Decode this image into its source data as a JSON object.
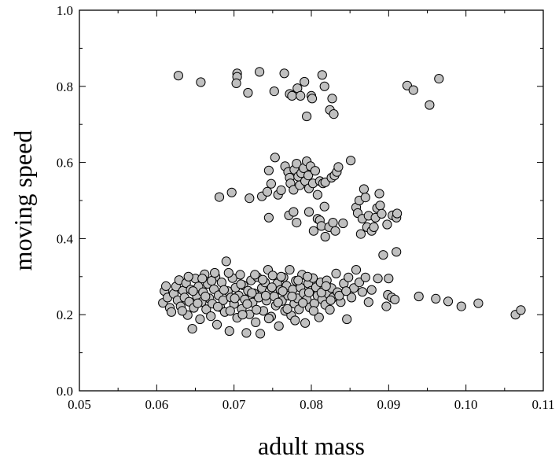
{
  "chart_data": {
    "type": "scatter",
    "title": "",
    "xlabel": "adult mass",
    "ylabel": "moving speed",
    "xlim": [
      0.05,
      0.11
    ],
    "ylim": [
      0.0,
      1.0
    ],
    "x_ticks": [
      "0.05",
      "0.06",
      "0.07",
      "0.08",
      "0.09",
      "0.10",
      "0.11"
    ],
    "y_ticks": [
      "0.0",
      "0.2",
      "0.4",
      "0.6",
      "0.8",
      "1.0"
    ],
    "grid": false,
    "legend": "none",
    "marker_fill": "#c0c0c0",
    "marker_edge": "#000000",
    "series": [
      {
        "points": [
          [
            0.0628,
            0.828
          ],
          [
            0.0657,
            0.811
          ],
          [
            0.0704,
            0.834
          ],
          [
            0.0704,
            0.825
          ],
          [
            0.0703,
            0.808
          ],
          [
            0.0718,
            0.783
          ],
          [
            0.0733,
            0.838
          ],
          [
            0.0752,
            0.787
          ],
          [
            0.0765,
            0.834
          ],
          [
            0.0772,
            0.78
          ],
          [
            0.0775,
            0.775
          ],
          [
            0.0782,
            0.795
          ],
          [
            0.0786,
            0.775
          ],
          [
            0.0791,
            0.812
          ],
          [
            0.08,
            0.775
          ],
          [
            0.0801,
            0.768
          ],
          [
            0.0814,
            0.83
          ],
          [
            0.0817,
            0.8
          ],
          [
            0.0827,
            0.768
          ],
          [
            0.0824,
            0.738
          ],
          [
            0.0829,
            0.727
          ],
          [
            0.0794,
            0.721
          ],
          [
            0.0924,
            0.802
          ],
          [
            0.0932,
            0.79
          ],
          [
            0.0965,
            0.82
          ],
          [
            0.0953,
            0.751
          ],
          [
            0.0681,
            0.509
          ],
          [
            0.0697,
            0.521
          ],
          [
            0.072,
            0.506
          ],
          [
            0.0736,
            0.511
          ],
          [
            0.0743,
            0.523
          ],
          [
            0.0745,
            0.579
          ],
          [
            0.0748,
            0.544
          ],
          [
            0.0753,
            0.613
          ],
          [
            0.0757,
            0.515
          ],
          [
            0.0761,
            0.527
          ],
          [
            0.0766,
            0.59
          ],
          [
            0.077,
            0.575
          ],
          [
            0.0772,
            0.56
          ],
          [
            0.0773,
            0.545
          ],
          [
            0.0777,
            0.528
          ],
          [
            0.0778,
            0.581
          ],
          [
            0.0781,
            0.597
          ],
          [
            0.0783,
            0.563
          ],
          [
            0.0785,
            0.54
          ],
          [
            0.0787,
            0.572
          ],
          [
            0.079,
            0.585
          ],
          [
            0.0792,
            0.551
          ],
          [
            0.0794,
            0.603
          ],
          [
            0.0796,
            0.566
          ],
          [
            0.0797,
            0.532
          ],
          [
            0.0799,
            0.59
          ],
          [
            0.0802,
            0.545
          ],
          [
            0.0805,
            0.578
          ],
          [
            0.0808,
            0.515
          ],
          [
            0.0811,
            0.551
          ],
          [
            0.0815,
            0.545
          ],
          [
            0.0818,
            0.548
          ],
          [
            0.0826,
            0.56
          ],
          [
            0.083,
            0.566
          ],
          [
            0.0833,
            0.575
          ],
          [
            0.0835,
            0.588
          ],
          [
            0.0851,
            0.605
          ],
          [
            0.0745,
            0.455
          ],
          [
            0.0771,
            0.461
          ],
          [
            0.0777,
            0.47
          ],
          [
            0.0781,
            0.442
          ],
          [
            0.0797,
            0.47
          ],
          [
            0.0803,
            0.42
          ],
          [
            0.0808,
            0.452
          ],
          [
            0.0811,
            0.448
          ],
          [
            0.0813,
            0.433
          ],
          [
            0.0817,
            0.484
          ],
          [
            0.0818,
            0.405
          ],
          [
            0.0823,
            0.43
          ],
          [
            0.0828,
            0.442
          ],
          [
            0.0831,
            0.42
          ],
          [
            0.0841,
            0.44
          ],
          [
            0.0858,
            0.482
          ],
          [
            0.086,
            0.467
          ],
          [
            0.0862,
            0.5
          ],
          [
            0.0864,
            0.412
          ],
          [
            0.0866,
            0.452
          ],
          [
            0.0868,
            0.53
          ],
          [
            0.087,
            0.508
          ],
          [
            0.0872,
            0.43
          ],
          [
            0.0874,
            0.46
          ],
          [
            0.0878,
            0.42
          ],
          [
            0.0881,
            0.43
          ],
          [
            0.0883,
            0.455
          ],
          [
            0.0885,
            0.48
          ],
          [
            0.0888,
            0.518
          ],
          [
            0.0889,
            0.487
          ],
          [
            0.0891,
            0.465
          ],
          [
            0.0898,
            0.437
          ],
          [
            0.0905,
            0.461
          ],
          [
            0.091,
            0.455
          ],
          [
            0.0911,
            0.466
          ],
          [
            0.0893,
            0.357
          ],
          [
            0.091,
            0.365
          ],
          [
            0.0608,
            0.231
          ],
          [
            0.061,
            0.262
          ],
          [
            0.0614,
            0.245
          ],
          [
            0.0617,
            0.218
          ],
          [
            0.0619,
            0.207
          ],
          [
            0.0622,
            0.255
          ],
          [
            0.0625,
            0.274
          ],
          [
            0.0627,
            0.238
          ],
          [
            0.0629,
            0.291
          ],
          [
            0.0631,
            0.222
          ],
          [
            0.0634,
            0.263
          ],
          [
            0.0636,
            0.245
          ],
          [
            0.0638,
            0.283
          ],
          [
            0.064,
            0.199
          ],
          [
            0.0642,
            0.234
          ],
          [
            0.0644,
            0.266
          ],
          [
            0.0646,
            0.163
          ],
          [
            0.0648,
            0.218
          ],
          [
            0.065,
            0.295
          ],
          [
            0.0652,
            0.248
          ],
          [
            0.0654,
            0.274
          ],
          [
            0.0656,
            0.188
          ],
          [
            0.0658,
            0.233
          ],
          [
            0.066,
            0.259
          ],
          [
            0.0662,
            0.306
          ],
          [
            0.0664,
            0.214
          ],
          [
            0.0666,
            0.281
          ],
          [
            0.0668,
            0.243
          ],
          [
            0.067,
            0.196
          ],
          [
            0.0672,
            0.229
          ],
          [
            0.0674,
            0.267
          ],
          [
            0.0676,
            0.3
          ],
          [
            0.0678,
            0.174
          ],
          [
            0.068,
            0.251
          ],
          [
            0.0682,
            0.22
          ],
          [
            0.0684,
            0.285
          ],
          [
            0.0686,
            0.238
          ],
          [
            0.0688,
            0.207
          ],
          [
            0.069,
            0.34
          ],
          [
            0.0692,
            0.262
          ],
          [
            0.0694,
            0.157
          ],
          [
            0.0696,
            0.245
          ],
          [
            0.0698,
            0.296
          ],
          [
            0.07,
            0.228
          ],
          [
            0.0702,
            0.271
          ],
          [
            0.0704,
            0.192
          ],
          [
            0.0706,
            0.25
          ],
          [
            0.0708,
            0.305
          ],
          [
            0.071,
            0.215
          ],
          [
            0.0712,
            0.277
          ],
          [
            0.0714,
            0.24
          ],
          [
            0.0716,
            0.152
          ],
          [
            0.0718,
            0.263
          ],
          [
            0.072,
            0.201
          ],
          [
            0.0722,
            0.29
          ],
          [
            0.0724,
            0.232
          ],
          [
            0.0726,
            0.256
          ],
          [
            0.0728,
            0.18
          ],
          [
            0.073,
            0.299
          ],
          [
            0.0732,
            0.245
          ],
          [
            0.0734,
            0.15
          ],
          [
            0.0736,
            0.27
          ],
          [
            0.0738,
            0.21
          ],
          [
            0.074,
            0.285
          ],
          [
            0.0742,
            0.237
          ],
          [
            0.0744,
            0.318
          ],
          [
            0.0746,
            0.262
          ],
          [
            0.0748,
            0.195
          ],
          [
            0.075,
            0.303
          ],
          [
            0.0752,
            0.248
          ],
          [
            0.0754,
            0.224
          ],
          [
            0.0756,
            0.282
          ],
          [
            0.0758,
            0.17
          ],
          [
            0.076,
            0.265
          ],
          [
            0.0762,
            0.236
          ],
          [
            0.0764,
            0.298
          ],
          [
            0.0766,
            0.21
          ],
          [
            0.0768,
            0.276
          ],
          [
            0.077,
            0.25
          ],
          [
            0.0772,
            0.318
          ],
          [
            0.0774,
            0.198
          ],
          [
            0.0776,
            0.266
          ],
          [
            0.0778,
            0.229
          ],
          [
            0.078,
            0.289
          ],
          [
            0.0782,
            0.243
          ],
          [
            0.0784,
            0.214
          ],
          [
            0.0786,
            0.271
          ],
          [
            0.0788,
            0.305
          ],
          [
            0.079,
            0.256
          ],
          [
            0.0792,
            0.178
          ],
          [
            0.0794,
            0.24
          ],
          [
            0.0796,
            0.282
          ],
          [
            0.0798,
            0.219
          ],
          [
            0.08,
            0.263
          ],
          [
            0.0802,
            0.296
          ],
          [
            0.0804,
            0.23
          ],
          [
            0.0806,
            0.272
          ],
          [
            0.0808,
            0.25
          ],
          [
            0.081,
            0.193
          ],
          [
            0.0812,
            0.285
          ],
          [
            0.0814,
            0.24
          ],
          [
            0.0816,
            0.265
          ],
          [
            0.0818,
            0.226
          ],
          [
            0.082,
            0.29
          ],
          [
            0.0822,
            0.255
          ],
          [
            0.0824,
            0.213
          ],
          [
            0.0826,
            0.27
          ],
          [
            0.0828,
            0.245
          ],
          [
            0.0832,
            0.308
          ],
          [
            0.0834,
            0.259
          ],
          [
            0.0838,
            0.233
          ],
          [
            0.0842,
            0.282
          ],
          [
            0.0846,
            0.188
          ],
          [
            0.0848,
            0.298
          ],
          [
            0.0852,
            0.245
          ],
          [
            0.0855,
            0.27
          ],
          [
            0.0858,
            0.318
          ],
          [
            0.0862,
            0.285
          ],
          [
            0.0866,
            0.26
          ],
          [
            0.087,
            0.298
          ],
          [
            0.0874,
            0.233
          ],
          [
            0.0878,
            0.265
          ],
          [
            0.0886,
            0.295
          ],
          [
            0.09,
            0.295
          ],
          [
            0.0897,
            0.222
          ],
          [
            0.0899,
            0.252
          ],
          [
            0.0904,
            0.245
          ],
          [
            0.0908,
            0.24
          ],
          [
            0.0939,
            0.248
          ],
          [
            0.0961,
            0.242
          ],
          [
            0.0977,
            0.235
          ],
          [
            0.0994,
            0.222
          ],
          [
            0.1016,
            0.23
          ],
          [
            0.1064,
            0.2
          ],
          [
            0.1071,
            0.212
          ],
          [
            0.0612,
            0.275
          ],
          [
            0.0633,
            0.21
          ],
          [
            0.0647,
            0.262
          ],
          [
            0.0653,
            0.23
          ],
          [
            0.0663,
            0.248
          ],
          [
            0.0671,
            0.289
          ],
          [
            0.0679,
            0.221
          ],
          [
            0.0687,
            0.265
          ],
          [
            0.0695,
            0.21
          ],
          [
            0.0701,
            0.243
          ],
          [
            0.0709,
            0.28
          ],
          [
            0.0717,
            0.228
          ],
          [
            0.0723,
            0.257
          ],
          [
            0.0729,
            0.213
          ],
          [
            0.0737,
            0.292
          ],
          [
            0.0741,
            0.25
          ],
          [
            0.0749,
            0.272
          ],
          [
            0.0757,
            0.232
          ],
          [
            0.0763,
            0.262
          ],
          [
            0.0769,
            0.215
          ],
          [
            0.0775,
            0.248
          ],
          [
            0.0783,
            0.29
          ],
          [
            0.0789,
            0.231
          ],
          [
            0.0797,
            0.258
          ],
          [
            0.0803,
            0.21
          ],
          [
            0.0813,
            0.258
          ],
          [
            0.0819,
            0.275
          ],
          [
            0.0825,
            0.238
          ],
          [
            0.0836,
            0.25
          ],
          [
            0.0845,
            0.262
          ],
          [
            0.0641,
            0.3
          ],
          [
            0.0659,
            0.295
          ],
          [
            0.0675,
            0.31
          ],
          [
            0.0693,
            0.31
          ],
          [
            0.0711,
            0.2
          ],
          [
            0.0727,
            0.305
          ],
          [
            0.0745,
            0.19
          ],
          [
            0.0761,
            0.3
          ],
          [
            0.0779,
            0.185
          ],
          [
            0.0795,
            0.3
          ]
        ]
      }
    ]
  }
}
